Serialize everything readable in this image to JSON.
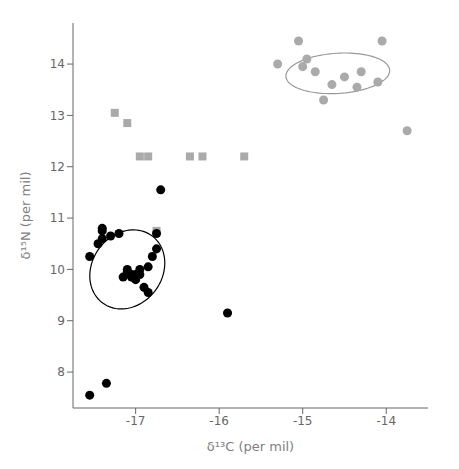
{
  "chart_data": {
    "type": "scatter",
    "xlabel": "δ¹³C (per mil)",
    "ylabel": "δ¹⁵N (per mil)",
    "series": [
      {
        "marker": "square",
        "color": "#aaaaaa",
        "values": [
          [
            -17.25,
            13.05
          ],
          [
            -17.1,
            12.85
          ],
          [
            -16.95,
            12.2
          ],
          [
            -16.85,
            12.2
          ],
          [
            -16.35,
            12.2
          ],
          [
            -16.2,
            12.2
          ],
          [
            -16.75,
            10.75
          ],
          [
            -15.7,
            12.2
          ]
        ]
      },
      {
        "marker": "circle",
        "color": "#aaaaaa",
        "values": [
          [
            -15.3,
            14.0
          ],
          [
            -15.05,
            14.45
          ],
          [
            -15.0,
            13.95
          ],
          [
            -14.95,
            14.1
          ],
          [
            -14.85,
            13.85
          ],
          [
            -14.75,
            13.3
          ],
          [
            -14.65,
            13.6
          ],
          [
            -14.5,
            13.75
          ],
          [
            -14.35,
            13.55
          ],
          [
            -14.3,
            13.85
          ],
          [
            -14.1,
            13.65
          ],
          [
            -14.05,
            14.45
          ],
          [
            -13.75,
            12.7
          ]
        ]
      },
      {
        "marker": "circle",
        "color": "#000000",
        "values": [
          [
            -17.55,
            7.55
          ],
          [
            -17.35,
            7.78
          ],
          [
            -17.55,
            10.25
          ],
          [
            -17.45,
            10.5
          ],
          [
            -17.4,
            10.6
          ],
          [
            -17.4,
            10.75
          ],
          [
            -17.4,
            10.8
          ],
          [
            -17.3,
            10.65
          ],
          [
            -17.2,
            10.7
          ],
          [
            -17.15,
            9.85
          ],
          [
            -17.1,
            9.95
          ],
          [
            -17.1,
            10.0
          ],
          [
            -17.05,
            9.85
          ],
          [
            -17.05,
            9.9
          ],
          [
            -17.0,
            9.8
          ],
          [
            -17.0,
            9.9
          ],
          [
            -16.95,
            9.9
          ],
          [
            -16.95,
            10.0
          ],
          [
            -16.9,
            9.65
          ],
          [
            -16.85,
            9.55
          ],
          [
            -16.85,
            10.05
          ],
          [
            -16.8,
            10.25
          ],
          [
            -16.75,
            10.4
          ],
          [
            -16.75,
            10.7
          ],
          [
            -16.7,
            11.55
          ],
          [
            -15.9,
            9.15
          ]
        ]
      }
    ],
    "ellipses": [
      {
        "center": [
          -17.1,
          10.0
        ],
        "width": 0.88,
        "height": 1.55,
        "angle": -8,
        "color": "#000000"
      },
      {
        "center": [
          -14.58,
          13.82
        ],
        "width": 1.25,
        "height": 0.78,
        "angle": 8,
        "color": "#999999"
      }
    ],
    "xlim": [
      -17.75,
      -13.5
    ],
    "ylim": [
      7.3,
      14.8
    ],
    "xticks": [
      -17,
      -16,
      -15,
      -14
    ],
    "yticks": [
      8,
      9,
      10,
      11,
      12,
      13,
      14
    ],
    "grid": false
  }
}
